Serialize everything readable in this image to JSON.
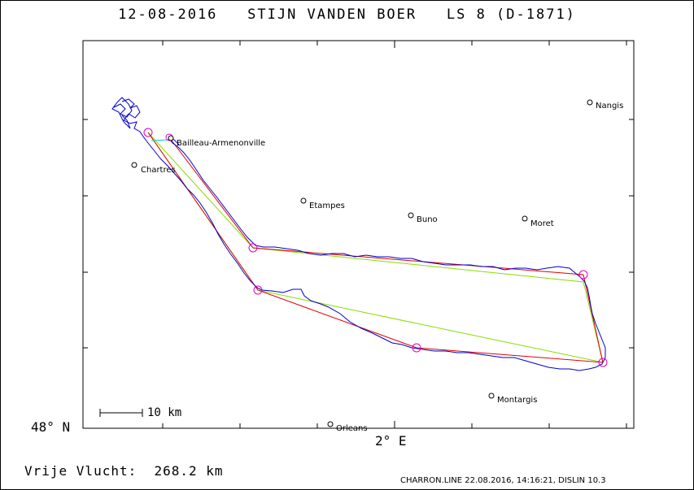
{
  "header": {
    "date": "12-08-2016",
    "pilot": "STIJN VANDEN BOER",
    "glider": "LS 8 (D-1871)"
  },
  "axes": {
    "lat_label": "48° N",
    "lon_label": "2° E"
  },
  "scale_bar": {
    "label": "10 km"
  },
  "towns": [
    {
      "name": "Nangis"
    },
    {
      "name": "Bailleau-Armenonville"
    },
    {
      "name": "Chartres"
    },
    {
      "name": "Etampes"
    },
    {
      "name": "Buno"
    },
    {
      "name": "Moret"
    },
    {
      "name": "Montargis"
    },
    {
      "name": "Orleans"
    }
  ],
  "footer": {
    "distance_label": "Vrije Vlucht:",
    "distance_value": "268.2 km",
    "program_info": "CHARRON.LINE 22.08.2016, 14:16:21, DISLIN 10.3"
  },
  "colors": {
    "track": "#0000cc",
    "task_line": "#e00000",
    "optimized_line": "#88dd00",
    "turnpoint": "#dd00cc",
    "start_line": "#00cccc"
  }
}
